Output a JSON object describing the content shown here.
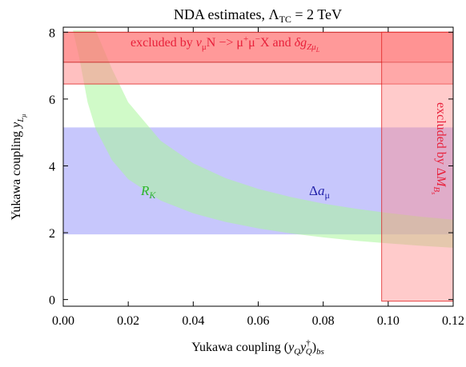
{
  "chart_data": {
    "type": "area",
    "title": "NDA estimates, ΛTC = 2 TeV",
    "title_parts": {
      "main": "NDA estimates, Λ",
      "sub": "TC",
      "rest": " = 2 TeV"
    },
    "xlabel_parts": {
      "a": "Yukawa coupling (",
      "b": "y",
      "c": "Q",
      "d": "y",
      "e": "†",
      "f": "Q",
      "g": ")",
      "h": "bs"
    },
    "ylabel_parts": {
      "a": "Yukawa coupling ",
      "b": "y",
      "c": "L",
      "d": "μ"
    },
    "xlim": [
      0.0,
      0.12
    ],
    "ylim": [
      -0.2,
      8.15
    ],
    "xticks": [
      0.0,
      0.02,
      0.04,
      0.06,
      0.08,
      0.1,
      0.12
    ],
    "xtick_labels": [
      "0.00",
      "0.02",
      "0.04",
      "0.06",
      "0.08",
      "0.10",
      "0.12"
    ],
    "yticks": [
      0,
      2,
      4,
      6,
      8
    ],
    "ytick_labels": [
      "0",
      "2",
      "4",
      "6",
      "8"
    ],
    "regions": [
      {
        "id": "delta-a-mu-band",
        "kind": "horizontal_band",
        "ymin": 1.95,
        "ymax": 5.15,
        "color": "#bdbdfb"
      },
      {
        "id": "rk-band",
        "kind": "curve_band",
        "color": "#c1fbb6",
        "x": [
          0.0012,
          0.002,
          0.003,
          0.005,
          0.0075,
          0.01,
          0.015,
          0.02,
          0.03,
          0.04,
          0.05,
          0.06,
          0.07,
          0.08,
          0.09,
          0.1,
          0.11,
          0.12
        ],
        "lower": [
          8.05,
          8.05,
          8.05,
          7.2,
          5.9,
          5.1,
          4.17,
          3.6,
          2.96,
          2.58,
          2.32,
          2.13,
          1.98,
          1.86,
          1.76,
          1.68,
          1.61,
          1.55
        ],
        "upper": [
          8.05,
          8.05,
          8.05,
          8.05,
          8.05,
          8.05,
          6.9,
          5.9,
          4.75,
          4.08,
          3.63,
          3.31,
          3.07,
          2.87,
          2.72,
          2.59,
          2.48,
          2.39
        ]
      },
      {
        "id": "dg-exclusion-outer",
        "kind": "horizontal_band",
        "xmin": 0.0,
        "xmax": 0.12,
        "ymin": 6.45,
        "ymax": 8.0,
        "color": "#ffa8a8"
      },
      {
        "id": "dg-exclusion-inner",
        "kind": "horizontal_band",
        "xmin": 0.0,
        "xmax": 0.12,
        "ymin": 7.1,
        "ymax": 8.0,
        "color": "#ff8080"
      },
      {
        "id": "dmbs-exclusion",
        "kind": "vertical_band",
        "xmin": 0.098,
        "xmax": 0.12,
        "ymin": -0.05,
        "ymax": 8.0,
        "color": "#ffaaaa"
      }
    ],
    "annotations": {
      "rk": {
        "main": "R",
        "sub": "K",
        "color": "#2bb52b"
      },
      "amu": {
        "pre": "Δ",
        "main": "a",
        "sub": "μ",
        "color": "#2222aa"
      },
      "top": {
        "a": "excluded by ",
        "b": "ν",
        "c": "μ",
        "d": "N −> μ",
        "e": "+",
        "f": "μ",
        "g": "−",
        "h": "X and ",
        "i": "δg",
        "j": "Zμ",
        "k": "L",
        "color": "#e8203a"
      },
      "right": {
        "a": "excluded by Δ",
        "b": "M",
        "c": "B",
        "d": "s",
        "color": "#e8203a"
      }
    }
  }
}
